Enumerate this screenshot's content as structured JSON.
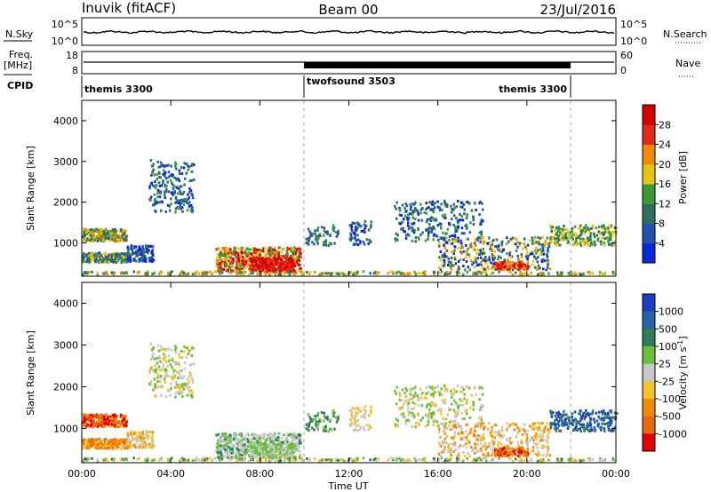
{
  "header": {
    "station": "Inuvik (fitACF)",
    "beam": "Beam 00",
    "date": "23/Jul/2016"
  },
  "noise_panel": {
    "left_label": "N.Sky",
    "left_ticks": [
      "10^5",
      "10^0"
    ],
    "right_ticks": [
      "10^5",
      "10^0"
    ],
    "right_label": "N.Search"
  },
  "freq_panel": {
    "left_label_1": "Freq.",
    "left_label_2": "[MHz]",
    "left_ticks": [
      "18",
      "8"
    ],
    "right_ticks": [
      "60",
      "0"
    ],
    "right_label": "Nave"
  },
  "cpid": {
    "label": "CPID",
    "modes": [
      {
        "name": "themis 3300",
        "start_hour": 0
      },
      {
        "name": "twofsound 3503",
        "start_hour": 10
      },
      {
        "name": "themis 3300",
        "start_hour": 22
      }
    ]
  },
  "chart_data": [
    {
      "type": "heatmap",
      "title": "",
      "xlabel": "",
      "ylabel": "Slant Range [km]",
      "xlim": [
        0,
        24
      ],
      "ylim": [
        180,
        4500
      ],
      "x_ticks": [
        "00:00",
        "04:00",
        "08:00",
        "12:00",
        "16:00",
        "20:00",
        "00:00"
      ],
      "y_ticks": [
        1000,
        2000,
        3000,
        4000
      ],
      "colorbar": {
        "label": "Power [dB]",
        "ticks": [
          4,
          8,
          12,
          16,
          20,
          24,
          28
        ],
        "colors": [
          "#0a27d6",
          "#2452b0",
          "#2e6e5e",
          "#3a9a3a",
          "#e6c410",
          "#f08a0a",
          "#e02a1a",
          "#d40000"
        ]
      }
    },
    {
      "type": "heatmap",
      "title": "",
      "xlabel": "Time UT",
      "ylabel": "Slant Range [km]",
      "xlim": [
        0,
        24
      ],
      "ylim": [
        180,
        4500
      ],
      "x_ticks": [
        "00:00",
        "04:00",
        "08:00",
        "12:00",
        "16:00",
        "20:00",
        "00:00"
      ],
      "y_ticks": [
        1000,
        2000,
        3000,
        4000
      ],
      "colorbar": {
        "label": "Velocity [m s^-1]",
        "ticks": [
          "1000",
          "500",
          "100",
          "25",
          "-25",
          "-100",
          "-500",
          "-1000"
        ],
        "colors": [
          "#1c3fbf",
          "#2a62a8",
          "#2f7d5a",
          "#6bbf3a",
          "#c8c8c8",
          "#f2c230",
          "#f08a0a",
          "#e86a10",
          "#e00000"
        ]
      }
    }
  ]
}
